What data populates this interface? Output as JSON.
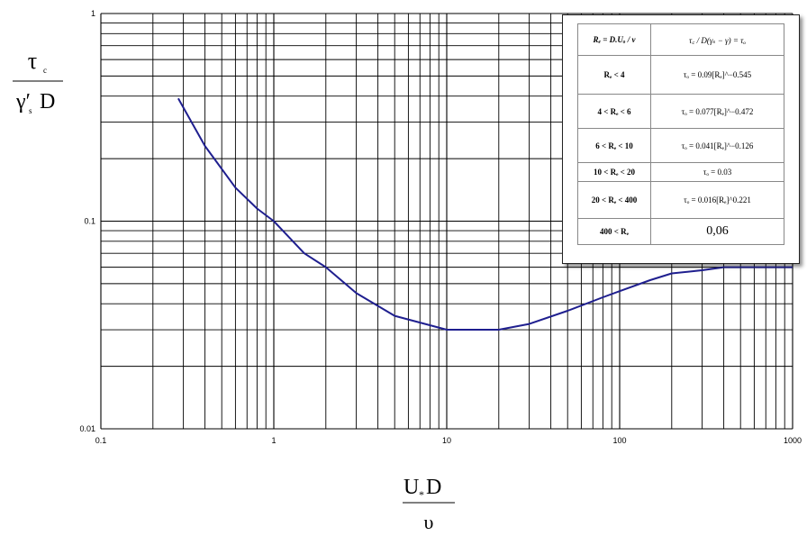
{
  "chart_data": {
    "type": "line",
    "x_scale": "log",
    "y_scale": "log",
    "xlim": [
      0.1,
      1000
    ],
    "ylim": [
      0.01,
      1
    ],
    "x_ticks": [
      "0.1",
      "1",
      "10",
      "100",
      "1000"
    ],
    "y_ticks": [
      "0.01",
      "0.1",
      "1"
    ],
    "grid": true,
    "ylabel": {
      "numerator": "τ",
      "numerator_sub": "c",
      "denominator": "γ′",
      "denominator_sub": "s",
      "denominator_tail": "D"
    },
    "xlabel": {
      "numerator": "U",
      "numerator_sub": "*",
      "numerator_tail": "D",
      "denominator": "υ"
    },
    "line_color": "#1f1f8f",
    "series": [
      {
        "x": [
          0.28,
          0.4,
          0.6,
          0.8,
          1.0,
          1.5,
          2,
          3,
          5,
          10,
          15,
          20,
          30,
          50,
          80,
          100,
          150,
          200,
          300,
          400,
          1000
        ],
        "y": [
          0.39,
          0.23,
          0.145,
          0.115,
          0.1,
          0.07,
          0.06,
          0.045,
          0.035,
          0.03,
          0.03,
          0.03,
          0.032,
          0.037,
          0.043,
          0.046,
          0.052,
          0.056,
          0.058,
          0.06,
          0.06
        ]
      }
    ]
  },
  "legend_table": {
    "header": [
      "Rₑ = D.Uₒ / ν",
      "τ꜀ / D(γₛ − γ) = τₒ"
    ],
    "rows": [
      [
        "Rₑ < 4",
        "τₒ = 0.09[Rₑ]^−0.545"
      ],
      [
        "4 < Rₑ < 6",
        "τₒ = 0.077[Rₑ]^−0.472"
      ],
      [
        "6 < Rₑ < 10",
        "τₒ = 0.041[Rₑ]^−0.126"
      ],
      [
        "10 < Rₑ < 20",
        "τₒ = 0.03"
      ],
      [
        "20 < Rₑ < 400",
        "τₒ = 0.016[Rₑ]^0.221"
      ],
      [
        "400 < Rₑ",
        "0,06"
      ]
    ]
  }
}
